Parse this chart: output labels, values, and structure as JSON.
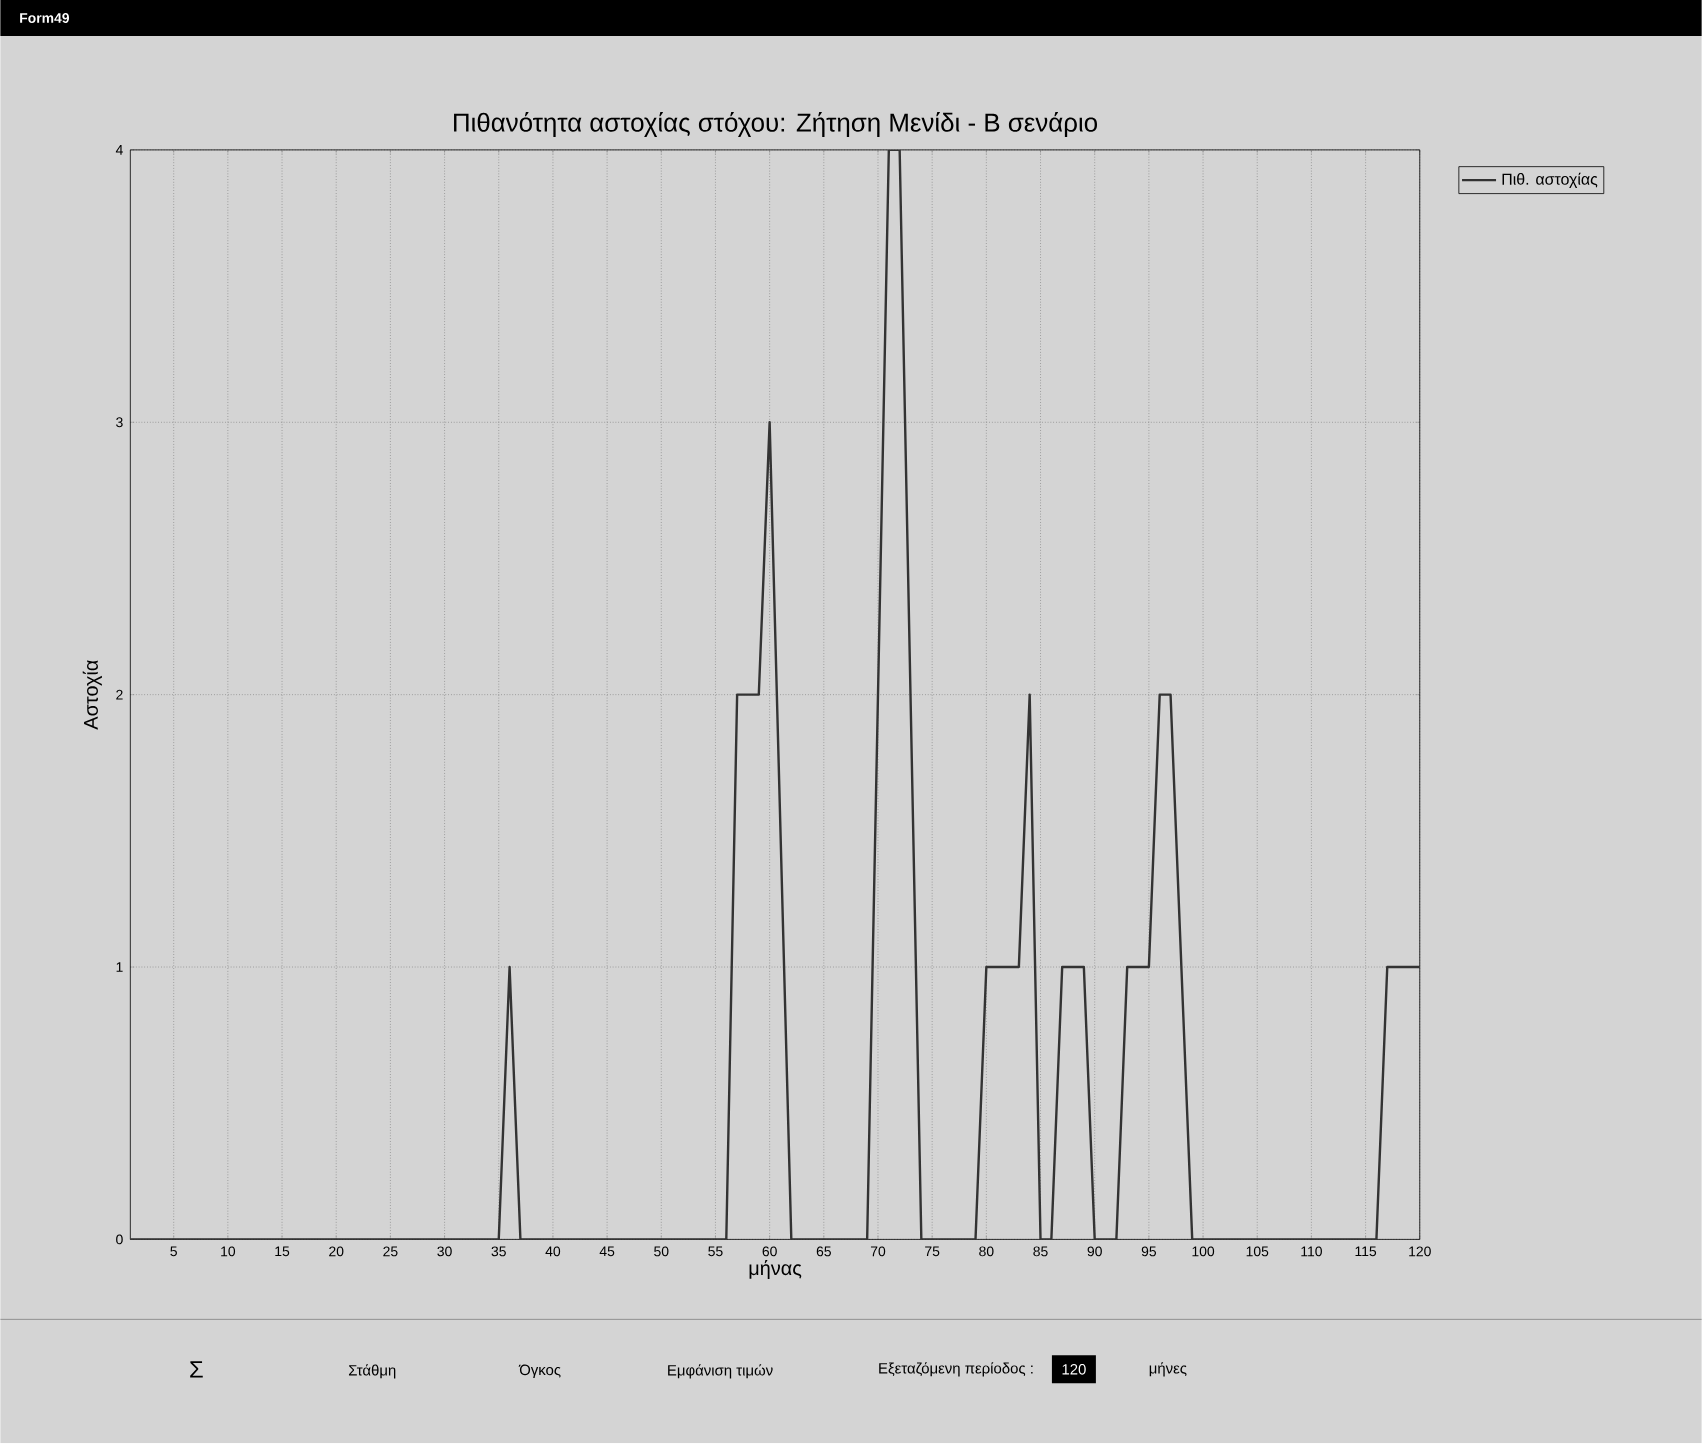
{
  "chart_data": {
    "type": "line",
    "title": "Πιθανότητα αστοχίας στόχου: Ζήτηση Μενίδι - Β σενάριο",
    "xlabel": "μήνας",
    "ylabel": "Αστοχία",
    "x": [
      1,
      35,
      36,
      37,
      56,
      57,
      59,
      60,
      62,
      69,
      71,
      72,
      74,
      79,
      80,
      83,
      84,
      85,
      86,
      87,
      89,
      90,
      92,
      93,
      95,
      96,
      97,
      99,
      116,
      117,
      120
    ],
    "series": [
      {
        "name": "Πιθ. αστοχίας",
        "color": "#333333",
        "values": [
          0,
          0,
          1,
          0,
          0,
          2,
          2,
          3,
          0,
          0,
          4,
          4,
          0,
          0,
          1,
          1,
          2,
          0,
          0,
          1,
          1,
          0,
          0,
          1,
          1,
          2,
          2,
          0,
          0,
          1,
          1
        ]
      }
    ],
    "xlim": [
      1,
      120
    ],
    "xticks": [
      5,
      10,
      15,
      20,
      25,
      30,
      35,
      40,
      45,
      50,
      55,
      60,
      65,
      70,
      75,
      80,
      85,
      90,
      95,
      100,
      105,
      110,
      115,
      120
    ],
    "ylim": [
      0,
      4
    ],
    "yticks": [
      0,
      1,
      2,
      3,
      4
    ],
    "grid": true,
    "legend": "top right",
    "marker": "none",
    "annotations": [
      "Form49",
      "Σ",
      "Στάθμη",
      "Όγκος",
      "Εμφάνιση τιμών",
      "Εξεταζόμενη περίοδος :",
      "120",
      "μήνες"
    ]
  }
}
